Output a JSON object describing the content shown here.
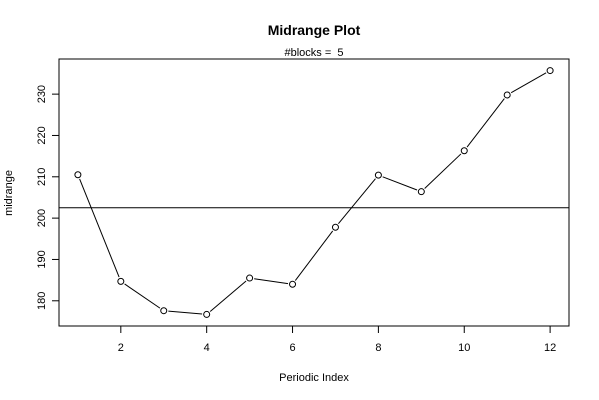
{
  "chart_data": {
    "type": "line",
    "title": "Midrange Plot",
    "subtitle": "#blocks =  5",
    "xlabel": "Periodic Index",
    "ylabel": "midrange",
    "x": [
      1,
      2,
      3,
      4,
      5,
      6,
      7,
      8,
      9,
      10,
      11,
      12
    ],
    "series": [
      {
        "values": [
          210.5,
          184.7,
          177.6,
          176.7,
          185.5,
          184.0,
          197.8,
          210.4,
          206.4,
          216.3,
          229.8,
          235.7
        ]
      }
    ],
    "reference_line": 202.5,
    "marker": "open-circle",
    "xlim": [
      0.56,
      12.44
    ],
    "ylim": [
      173.9,
      238.5
    ],
    "xticks": [
      2,
      4,
      6,
      8,
      10,
      12
    ],
    "yticks": [
      180,
      190,
      200,
      210,
      220,
      230
    ],
    "grid": false,
    "line_color": "#000000"
  }
}
